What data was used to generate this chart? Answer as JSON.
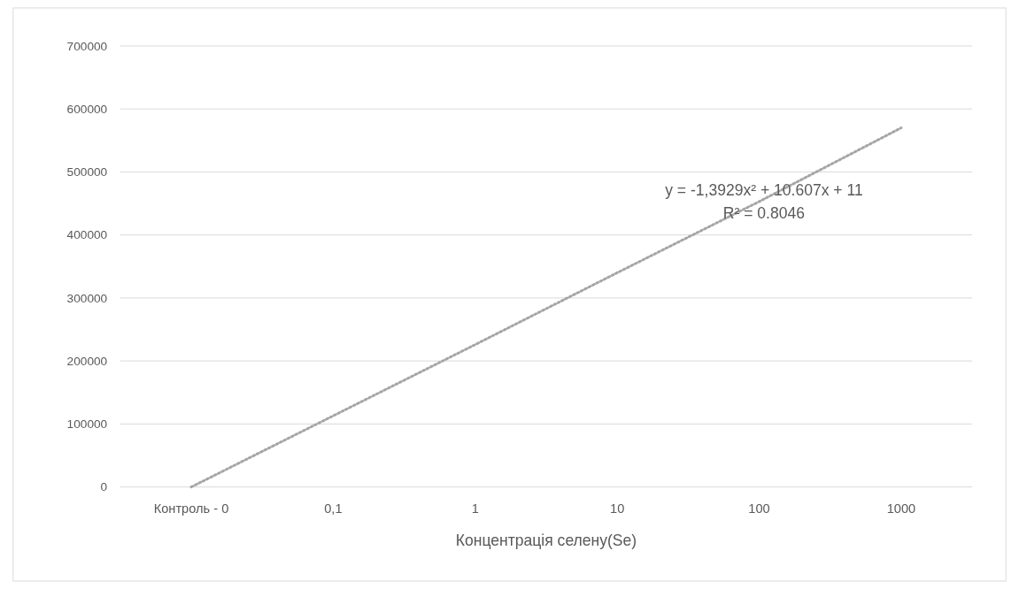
{
  "chart_data": {
    "type": "line",
    "xlabel": "Концентрація селену(Se)",
    "categories": [
      "Контроль - 0",
      "0,1",
      "1",
      "10",
      "100",
      "1000"
    ],
    "series": [
      {
        "color": "#a5a5a5",
        "values": [
          0,
          113000,
          226000,
          340000,
          453000,
          570000
        ]
      }
    ],
    "ylim": [
      0,
      700000
    ],
    "yticks": [
      0,
      100000,
      200000,
      300000,
      400000,
      500000,
      600000,
      700000
    ],
    "grid": "y",
    "marker": "none",
    "line_style": "dotted",
    "annotations": [
      "y = -1,3929x² + 10.607x + 11",
      "R² = 0.8046"
    ]
  }
}
